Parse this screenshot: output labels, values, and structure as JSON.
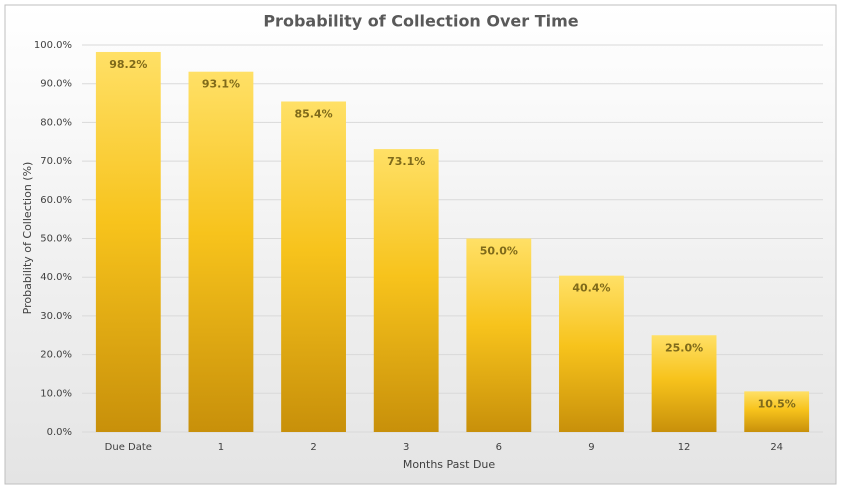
{
  "chart_data": {
    "type": "bar",
    "title": "Probability of Collection Over Time",
    "x_label": "Months Past Due",
    "y_label": "Probability of Collection (%)",
    "categories": [
      "Due Date",
      "1",
      "2",
      "3",
      "6",
      "9",
      "12",
      "24"
    ],
    "values": [
      98.2,
      93.1,
      85.4,
      73.1,
      50.0,
      40.4,
      25.0,
      10.5
    ],
    "value_labels": [
      "98.2%",
      "93.1%",
      "85.4%",
      "73.1%",
      "50.0%",
      "40.4%",
      "25.0%",
      "10.5%"
    ],
    "color": "#f7c31c",
    "ylim": [
      0,
      100
    ],
    "yticks": [
      {
        "value": 0,
        "label": "0.0%"
      },
      {
        "value": 10,
        "label": "10.0%"
      },
      {
        "value": 20,
        "label": "20.0%"
      },
      {
        "value": 30,
        "label": "30.0%"
      },
      {
        "value": 40,
        "label": "40.0%"
      },
      {
        "value": 50,
        "label": "50.0%"
      },
      {
        "value": 60,
        "label": "60.0%"
      },
      {
        "value": 70,
        "label": "70.0%"
      },
      {
        "value": 80,
        "label": "80.0%"
      },
      {
        "value": 90,
        "label": "90.0%"
      },
      {
        "value": 100,
        "label": "100.0%"
      }
    ],
    "grid": true
  }
}
